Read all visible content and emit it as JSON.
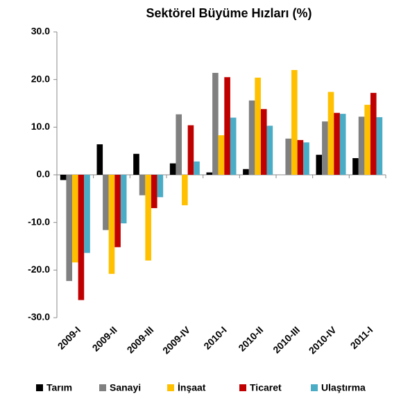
{
  "chart_data": {
    "type": "bar",
    "title": "Sektörel Büyüme Hızları (%)",
    "categories": [
      "2009-I",
      "2009-II",
      "2009-III",
      "2009-IV",
      "2010-I",
      "2010-II",
      "2010-III",
      "2010-IV",
      "2011-I"
    ],
    "series": [
      {
        "name": "Tarım",
        "color": "#000000",
        "values": [
          -1.1,
          6.4,
          4.4,
          2.4,
          0.5,
          1.2,
          0,
          4.2,
          3.5
        ]
      },
      {
        "name": "Sanayi",
        "color": "#808080",
        "values": [
          -22.3,
          -11.6,
          -4.3,
          12.7,
          21.4,
          15.6,
          7.6,
          11.2,
          12.2
        ]
      },
      {
        "name": "İnşaat",
        "color": "#ffc000",
        "values": [
          -18.4,
          -20.8,
          -18.0,
          -6.4,
          8.3,
          20.4,
          22.0,
          17.4,
          14.7
        ]
      },
      {
        "name": "Ticaret",
        "color": "#c00000",
        "values": [
          -26.3,
          -15.2,
          -7.0,
          10.4,
          20.5,
          13.8,
          7.3,
          13.0,
          17.2
        ]
      },
      {
        "name": "Ulaştırma",
        "color": "#4bacc6",
        "values": [
          -16.4,
          -10.2,
          -4.7,
          2.8,
          12.0,
          10.3,
          6.8,
          12.8,
          12.1
        ]
      }
    ],
    "ylim": [
      -30,
      30
    ],
    "yticks": [
      {
        "value": -30,
        "label": "-30.0"
      },
      {
        "value": -20,
        "label": "-20.0"
      },
      {
        "value": -10,
        "label": "-10.0"
      },
      {
        "value": 0,
        "label": "0.0"
      },
      {
        "value": 10,
        "label": "10.0"
      },
      {
        "value": 20,
        "label": "20.0"
      },
      {
        "value": 30,
        "label": "30.0"
      }
    ],
    "grid": false,
    "legend": "bottom"
  }
}
